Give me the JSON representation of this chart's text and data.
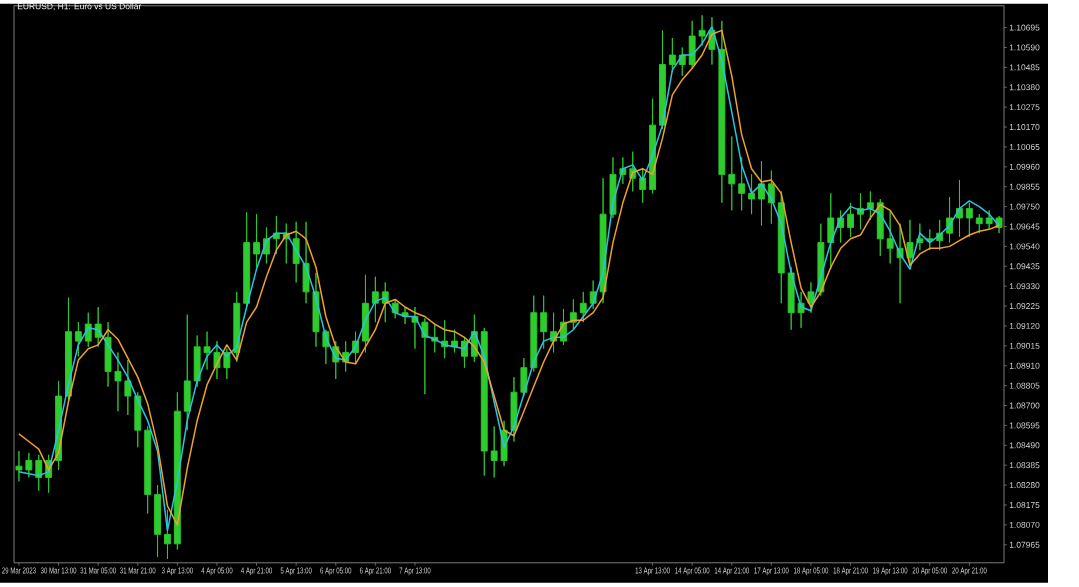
{
  "chart_data": {
    "type": "candlestick",
    "title": "EURUSD, H1: Euro vs US Dollar",
    "color": "#2ecc2e",
    "categories": [
      "29 Mar 2023",
      null,
      null,
      null,
      "30 Mar 13:00",
      null,
      null,
      null,
      "31 Mar 05:00",
      null,
      null,
      null,
      "31 Mar 21:00",
      null,
      null,
      null,
      "3 Apr 13:00",
      null,
      null,
      null,
      "4 Apr 05:00",
      null,
      null,
      null,
      "4 Apr 21:00",
      null,
      null,
      null,
      "5 Apr 13:00",
      null,
      null,
      null,
      "6 Apr 05:00",
      null,
      null,
      null,
      "6 Apr 21:00",
      null,
      null,
      null,
      "7 Apr 13:00",
      null,
      null,
      null,
      null,
      null,
      null,
      null,
      null,
      null,
      null,
      null,
      null,
      null,
      null,
      null,
      null,
      null,
      null,
      null,
      null,
      null,
      null,
      null,
      "13 Apr 13:00",
      null,
      null,
      null,
      "14 Apr 05:00",
      null,
      null,
      null,
      "14 Apr 21:00",
      null,
      null,
      null,
      "17 Apr 13:00",
      null,
      null,
      null,
      "18 Apr 05:00",
      null,
      null,
      null,
      "18 Apr 21:00",
      null,
      null,
      null,
      "19 Apr 13:00",
      null,
      null,
      null,
      "20 Apr 05:00",
      null,
      null,
      null,
      "20 Apr 21:00",
      null,
      null,
      null
    ],
    "ohlc": [
      [
        1.0838,
        1.0846,
        1.083,
        1.0836
      ],
      [
        1.0836,
        1.0845,
        1.0832,
        1.0841
      ],
      [
        1.0841,
        1.0844,
        1.0825,
        1.0832
      ],
      [
        1.0832,
        1.0844,
        1.0824,
        1.0841
      ],
      [
        1.0841,
        1.0883,
        1.0836,
        1.0875
      ],
      [
        1.0875,
        1.0927,
        1.0872,
        1.0909
      ],
      [
        1.0909,
        1.0914,
        1.0896,
        1.0904
      ],
      [
        1.0904,
        1.0919,
        1.0901,
        1.0913
      ],
      [
        1.0913,
        1.0922,
        1.0901,
        1.0906
      ],
      [
        1.0906,
        1.0914,
        1.088,
        1.0888
      ],
      [
        1.0888,
        1.0898,
        1.0867,
        1.0883
      ],
      [
        1.0883,
        1.0894,
        1.0865,
        1.0875
      ],
      [
        1.0875,
        1.0877,
        1.0848,
        1.0857
      ],
      [
        1.0857,
        1.0859,
        1.0813,
        1.0823
      ],
      [
        1.0823,
        1.0828,
        1.079,
        1.0802
      ],
      [
        1.0802,
        1.0815,
        1.0789,
        1.0797
      ],
      [
        1.0797,
        1.0877,
        1.0794,
        1.0867
      ],
      [
        1.0867,
        1.0918,
        1.0857,
        1.0883
      ],
      [
        1.0883,
        1.0907,
        1.088,
        1.0901
      ],
      [
        1.0901,
        1.0909,
        1.0889,
        1.0898
      ],
      [
        1.0898,
        1.0904,
        1.0884,
        1.089
      ],
      [
        1.089,
        1.09,
        1.0884,
        1.0898
      ],
      [
        1.0898,
        1.093,
        1.0893,
        1.0924
      ],
      [
        1.0924,
        1.0972,
        1.0922,
        1.0956
      ],
      [
        1.0956,
        1.0971,
        1.0943,
        1.095
      ],
      [
        1.095,
        1.0964,
        1.0945,
        1.0958
      ],
      [
        1.0958,
        1.097,
        1.095,
        1.0961
      ],
      [
        1.0961,
        1.0966,
        1.0945,
        1.0958
      ],
      [
        1.0958,
        1.0967,
        1.0935,
        1.0945
      ],
      [
        1.0945,
        1.0967,
        1.0924,
        1.093
      ],
      [
        1.093,
        1.094,
        1.0901,
        1.0909
      ],
      [
        1.0909,
        1.091,
        1.0892,
        1.0901
      ],
      [
        1.0901,
        1.0904,
        1.0884,
        1.0893
      ],
      [
        1.0893,
        1.0904,
        1.0888,
        1.0898
      ],
      [
        1.0898,
        1.0909,
        1.0892,
        1.0904
      ],
      [
        1.0904,
        1.0939,
        1.0898,
        1.0924
      ],
      [
        1.0924,
        1.0938,
        1.0914,
        1.093
      ],
      [
        1.093,
        1.0935,
        1.0914,
        1.0924
      ],
      [
        1.0924,
        1.0926,
        1.0916,
        1.0919
      ],
      [
        1.0919,
        1.0922,
        1.0913,
        1.0917
      ],
      [
        1.0917,
        1.0922,
        1.09,
        1.0914
      ],
      [
        1.0914,
        1.0916,
        1.0876,
        1.0906
      ],
      [
        1.0906,
        1.0913,
        1.0898,
        1.0904
      ],
      [
        1.0904,
        1.0915,
        1.0895,
        1.0901
      ],
      [
        1.0901,
        1.091,
        1.0898,
        1.0904
      ],
      [
        1.0904,
        1.0906,
        1.089,
        1.0896
      ],
      [
        1.0896,
        1.0918,
        1.0893,
        1.0909
      ],
      [
        1.0909,
        1.0911,
        1.0833,
        1.0846
      ],
      [
        1.0846,
        1.0859,
        1.0832,
        1.0841
      ],
      [
        1.0841,
        1.0862,
        1.0838,
        1.0857
      ],
      [
        1.0857,
        1.0885,
        1.0851,
        1.0877
      ],
      [
        1.0877,
        1.0895,
        1.0875,
        1.089
      ],
      [
        1.089,
        1.0928,
        1.0888,
        1.0919
      ],
      [
        1.0919,
        1.0928,
        1.09,
        1.0909
      ],
      [
        1.0909,
        1.0919,
        1.0898,
        1.0904
      ],
      [
        1.0904,
        1.0921,
        1.0902,
        1.0914
      ],
      [
        1.0914,
        1.0926,
        1.091,
        1.0919
      ],
      [
        1.0919,
        1.093,
        1.0914,
        1.0924
      ],
      [
        1.0924,
        1.0936,
        1.0921,
        1.093
      ],
      [
        1.093,
        1.099,
        1.0924,
        1.0971
      ],
      [
        1.0971,
        1.1001,
        1.0969,
        1.0992
      ],
      [
        1.0992,
        1.1001,
        1.0987,
        1.0995
      ],
      [
        1.0995,
        1.1004,
        1.0983,
        1.099
      ],
      [
        1.099,
        1.0995,
        1.0977,
        1.0984
      ],
      [
        1.0984,
        1.1032,
        1.0982,
        1.1018
      ],
      [
        1.1018,
        1.1068,
        1.1016,
        1.105
      ],
      [
        1.105,
        1.1064,
        1.1046,
        1.1055
      ],
      [
        1.1055,
        1.1059,
        1.1044,
        1.105
      ],
      [
        1.105,
        1.1073,
        1.1048,
        1.1065
      ],
      [
        1.1065,
        1.1076,
        1.106,
        1.1068
      ],
      [
        1.1068,
        1.1075,
        1.105,
        1.1058
      ],
      [
        1.1058,
        1.1073,
        1.0977,
        1.0992
      ],
      [
        1.0992,
        1.1012,
        1.0973,
        1.0987
      ],
      [
        1.0987,
        1.1001,
        1.0973,
        1.0982
      ],
      [
        1.0982,
        1.0992,
        1.0971,
        1.0979
      ],
      [
        1.0979,
        1.0999,
        1.0965,
        1.0987
      ],
      [
        1.0987,
        1.0994,
        1.0966,
        1.0977
      ],
      [
        1.0977,
        1.0983,
        1.0924,
        1.094
      ],
      [
        1.094,
        1.0943,
        1.091,
        1.0919
      ],
      [
        1.0919,
        1.093,
        1.0911,
        1.0924
      ],
      [
        1.0924,
        1.0935,
        1.0919,
        1.093
      ],
      [
        1.093,
        1.0966,
        1.0928,
        1.0956
      ],
      [
        1.0956,
        1.0982,
        1.0942,
        1.0969
      ],
      [
        1.0969,
        1.0973,
        1.0956,
        1.0964
      ],
      [
        1.0964,
        1.0977,
        1.0959,
        1.0971
      ],
      [
        1.0971,
        1.0982,
        1.0963,
        1.0974
      ],
      [
        1.0974,
        1.0983,
        1.0968,
        1.0977
      ],
      [
        1.0977,
        1.0979,
        1.0949,
        1.0958
      ],
      [
        1.0958,
        1.0973,
        1.0945,
        1.0953
      ],
      [
        1.0953,
        1.0966,
        1.0924,
        1.0948
      ],
      [
        1.0948,
        1.0968,
        1.0942,
        1.0956
      ],
      [
        1.0956,
        1.0966,
        1.0952,
        1.0958
      ],
      [
        1.0958,
        1.0963,
        1.0952,
        1.0957
      ],
      [
        1.0957,
        1.0968,
        1.0952,
        1.0961
      ],
      [
        1.0961,
        1.098,
        1.0956,
        1.0969
      ],
      [
        1.0969,
        1.0989,
        1.0959,
        1.0974
      ],
      [
        1.0974,
        1.0977,
        1.0959,
        1.0969
      ],
      [
        1.0969,
        1.0971,
        1.0961,
        1.0966
      ],
      [
        1.0966,
        1.0973,
        1.0963,
        1.0969
      ],
      [
        1.0969,
        1.097,
        1.0961,
        1.0964
      ]
    ],
    "series": [
      {
        "type": "line",
        "color": "#2bc4e0",
        "values": [
          1.0835,
          1.0834,
          1.0833,
          1.0835,
          1.0857,
          1.0881,
          1.0902,
          1.0911,
          1.091,
          1.0902,
          1.0894,
          1.0885,
          1.0873,
          1.0862,
          1.0846,
          1.0804,
          1.083,
          1.0862,
          1.0883,
          1.0896,
          1.0902,
          1.0896,
          1.0901,
          1.0922,
          1.0942,
          1.0957,
          1.0961,
          1.0961,
          1.0952,
          1.0943,
          1.0927,
          1.0906,
          1.0895,
          1.0894,
          1.0901,
          1.0915,
          1.0925,
          1.0927,
          1.0919,
          1.0917,
          1.0917,
          1.0907,
          1.0905,
          1.0902,
          1.0901,
          1.09,
          1.0909,
          1.0896,
          1.0872,
          1.0848,
          1.0859,
          1.0876,
          1.0893,
          1.0904,
          1.0906,
          1.0906,
          1.091,
          1.0917,
          1.0924,
          1.094,
          1.0977,
          1.0995,
          1.0997,
          1.0989,
          1.1002,
          1.1018,
          1.1047,
          1.1055,
          1.1055,
          1.1061,
          1.107,
          1.1052,
          1.1025,
          1.0997,
          1.0982,
          1.0987,
          1.0979,
          1.0966,
          1.094,
          1.0922,
          1.092,
          1.0938,
          1.0956,
          1.0969,
          1.0975,
          1.0973,
          1.0974,
          1.0971,
          1.0962,
          1.095,
          1.0942,
          1.0961,
          1.0956,
          1.096,
          1.0965,
          1.0974,
          1.0978,
          1.0975,
          1.0971,
          1.0965
        ]
      },
      {
        "type": "line",
        "color": "#f0a02c",
        "values": [
          1.0855,
          1.0851,
          1.0847,
          1.0836,
          1.0845,
          1.0872,
          1.0894,
          1.09,
          1.0902,
          1.091,
          1.0905,
          1.0895,
          1.0885,
          1.0871,
          1.0849,
          1.0817,
          1.0807,
          1.0837,
          1.0862,
          1.0881,
          1.0892,
          1.0902,
          1.0894,
          1.0914,
          1.0922,
          1.0938,
          1.0952,
          1.096,
          1.0962,
          1.0958,
          1.0943,
          1.0917,
          1.0901,
          1.0893,
          1.0892,
          1.0901,
          1.091,
          1.0924,
          1.0926,
          1.0922,
          1.0919,
          1.0917,
          1.0913,
          1.091,
          1.0909,
          1.0906,
          1.0901,
          1.0893,
          1.0875,
          1.0857,
          1.0854,
          1.0867,
          1.088,
          1.0893,
          1.0904,
          1.0913,
          1.0915,
          1.0915,
          1.0919,
          1.0927,
          1.0956,
          1.0977,
          1.0993,
          1.0995,
          1.0992,
          1.1011,
          1.1034,
          1.1042,
          1.1048,
          1.1055,
          1.1066,
          1.1068,
          1.1044,
          1.1013,
          1.0995,
          1.0988,
          1.0989,
          1.0982,
          1.0956,
          1.0932,
          1.0922,
          1.093,
          1.0943,
          1.0953,
          1.0958,
          1.096,
          1.0969,
          1.0976,
          1.0973,
          1.0965,
          1.0944,
          1.095,
          1.0953,
          1.0953,
          1.0954,
          1.0957,
          1.096,
          1.0962,
          1.0963,
          1.0965
        ]
      }
    ],
    "ylim": [
      1.0787,
      1.1081
    ],
    "yticks": [
      1.07965,
      {
        "value": 1.0807,
        "label": "1.08070"
      },
      1.08175,
      {
        "value": 1.0828,
        "label": "1.08280"
      },
      1.08385,
      {
        "value": 1.0849,
        "label": "1.08490"
      },
      1.08595,
      {
        "value": 1.087,
        "label": "1.08700"
      },
      1.08805,
      {
        "value": 1.0891,
        "label": "1.08910"
      },
      1.09015,
      {
        "value": 1.0912,
        "label": "1.09120"
      },
      1.09225,
      {
        "value": 1.0933,
        "label": "1.09330"
      },
      1.09435,
      {
        "value": 1.0954,
        "label": "1.09540"
      },
      1.09645,
      {
        "value": 1.0975,
        "label": "1.09750"
      },
      1.09855,
      {
        "value": 1.0996,
        "label": "1.09960"
      },
      1.10065,
      {
        "value": 1.1017,
        "label": "1.10170"
      },
      1.10275,
      {
        "value": 1.1038,
        "label": "1.10380"
      },
      1.10485,
      {
        "value": 1.1059,
        "label": "1.10590"
      },
      1.10695
    ]
  }
}
